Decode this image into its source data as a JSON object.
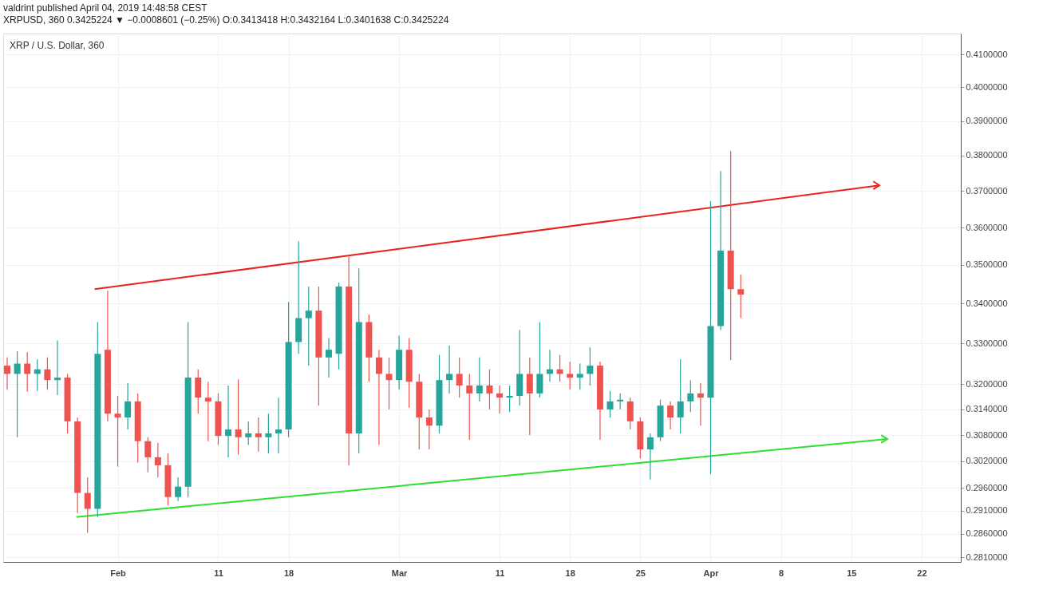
{
  "chart_data": {
    "type": "candlestick",
    "title": "valdrint published April 04, 2019 14:48:58 CEST",
    "subtitle": "XRPUSD, 360 0.3425224 ▼ −0.0008601 (−0.25%) O:0.3413418 H:0.3432164 L:0.3401638 C:0.3425224",
    "annotations": [
      "XRP / U.S. Dollar, 360"
    ],
    "x": [
      "2019-01-21",
      "2019-01-22",
      "2019-01-23",
      "2019-01-24",
      "2019-01-25",
      "2019-01-26",
      "2019-01-27",
      "2019-01-28",
      "2019-01-29",
      "2019-01-30",
      "2019-01-31",
      "2019-02-01",
      "2019-02-02",
      "2019-02-03",
      "2019-02-04",
      "2019-02-05",
      "2019-02-06",
      "2019-02-07",
      "2019-02-08",
      "2019-02-09",
      "2019-02-10",
      "2019-02-11",
      "2019-02-12",
      "2019-02-13",
      "2019-02-14",
      "2019-02-15",
      "2019-02-16",
      "2019-02-17",
      "2019-02-18",
      "2019-02-19",
      "2019-02-20",
      "2019-02-21",
      "2019-02-22",
      "2019-02-23",
      "2019-02-24",
      "2019-02-25",
      "2019-02-26",
      "2019-02-27",
      "2019-02-28",
      "2019-03-01",
      "2019-03-02",
      "2019-03-03",
      "2019-03-04",
      "2019-03-05",
      "2019-03-06",
      "2019-03-07",
      "2019-03-08",
      "2019-03-09",
      "2019-03-10",
      "2019-03-11",
      "2019-03-12",
      "2019-03-13",
      "2019-03-14",
      "2019-03-15",
      "2019-03-16",
      "2019-03-17",
      "2019-03-18",
      "2019-03-19",
      "2019-03-20",
      "2019-03-21",
      "2019-03-22",
      "2019-03-23",
      "2019-03-24",
      "2019-03-25",
      "2019-03-26",
      "2019-03-27",
      "2019-03-28",
      "2019-03-29",
      "2019-03-30",
      "2019-03-31",
      "2019-04-01",
      "2019-04-02",
      "2019-04-03",
      "2019-04-04"
    ],
    "ohlc": [
      [
        0.3245,
        0.3265,
        0.3187,
        0.3225
      ],
      [
        0.3225,
        0.328,
        0.3075,
        0.325
      ],
      [
        0.325,
        0.3278,
        0.3182,
        0.3225
      ],
      [
        0.3225,
        0.3261,
        0.3184,
        0.3236
      ],
      [
        0.3236,
        0.3265,
        0.3187,
        0.321
      ],
      [
        0.321,
        0.3307,
        0.3174,
        0.3216
      ],
      [
        0.3216,
        0.3225,
        0.3084,
        0.3112
      ],
      [
        0.3112,
        0.3121,
        0.2905,
        0.2949
      ],
      [
        0.2949,
        0.2984,
        0.2862,
        0.2914
      ],
      [
        0.2914,
        0.3353,
        0.2896,
        0.3274
      ],
      [
        0.3284,
        0.3433,
        0.3112,
        0.313
      ],
      [
        0.313,
        0.3172,
        0.3008,
        0.3121
      ],
      [
        0.3121,
        0.3203,
        0.3093,
        0.3159
      ],
      [
        0.3159,
        0.3178,
        0.3017,
        0.3066
      ],
      [
        0.3066,
        0.3075,
        0.2995,
        0.3029
      ],
      [
        0.3029,
        0.3062,
        0.2984,
        0.3011
      ],
      [
        0.3011,
        0.3038,
        0.2922,
        0.294
      ],
      [
        0.294,
        0.2984,
        0.2931,
        0.2963
      ],
      [
        0.2963,
        0.3353,
        0.294,
        0.3216
      ],
      [
        0.3216,
        0.3236,
        0.313,
        0.3168
      ],
      [
        0.3168,
        0.3206,
        0.3066,
        0.3159
      ],
      [
        0.3159,
        0.3178,
        0.3057,
        0.3078
      ],
      [
        0.3078,
        0.3197,
        0.3029,
        0.3093
      ],
      [
        0.3093,
        0.3212,
        0.3035,
        0.3075
      ],
      [
        0.3075,
        0.3112,
        0.3057,
        0.3084
      ],
      [
        0.3084,
        0.3121,
        0.3042,
        0.3075
      ],
      [
        0.3075,
        0.313,
        0.3038,
        0.3084
      ],
      [
        0.3084,
        0.3168,
        0.3038,
        0.3093
      ],
      [
        0.3093,
        0.3404,
        0.3075,
        0.3303
      ],
      [
        0.3303,
        0.3563,
        0.3274,
        0.3363
      ],
      [
        0.3363,
        0.3444,
        0.3245,
        0.3382
      ],
      [
        0.3382,
        0.3444,
        0.3149,
        0.3265
      ],
      [
        0.3265,
        0.3313,
        0.3216,
        0.3284
      ],
      [
        0.3274,
        0.3454,
        0.3236,
        0.3444
      ],
      [
        0.3444,
        0.3521,
        0.3011,
        0.3084
      ],
      [
        0.3084,
        0.3491,
        0.3038,
        0.3353
      ],
      [
        0.3353,
        0.3372,
        0.3206,
        0.3265
      ],
      [
        0.3265,
        0.3284,
        0.3057,
        0.3225
      ],
      [
        0.3225,
        0.3265,
        0.314,
        0.321
      ],
      [
        0.321,
        0.3319,
        0.3187,
        0.3284
      ],
      [
        0.3284,
        0.3313,
        0.3144,
        0.3206
      ],
      [
        0.3206,
        0.3225,
        0.3047,
        0.3121
      ],
      [
        0.3121,
        0.314,
        0.3047,
        0.3102
      ],
      [
        0.3102,
        0.3271,
        0.3084,
        0.321
      ],
      [
        0.321,
        0.3294,
        0.3178,
        0.3225
      ],
      [
        0.3225,
        0.3265,
        0.3168,
        0.3197
      ],
      [
        0.3197,
        0.3225,
        0.3069,
        0.3178
      ],
      [
        0.3178,
        0.3265,
        0.3159,
        0.3197
      ],
      [
        0.3197,
        0.3236,
        0.314,
        0.3178
      ],
      [
        0.3178,
        0.3197,
        0.313,
        0.3168
      ],
      [
        0.3168,
        0.3197,
        0.3134,
        0.3172
      ],
      [
        0.3172,
        0.3333,
        0.3149,
        0.3225
      ],
      [
        0.3225,
        0.3265,
        0.308,
        0.3178
      ],
      [
        0.3178,
        0.3353,
        0.3168,
        0.3225
      ],
      [
        0.3225,
        0.3284,
        0.3206,
        0.3236
      ],
      [
        0.3236,
        0.3271,
        0.3206,
        0.3225
      ],
      [
        0.3225,
        0.3255,
        0.3187,
        0.3216
      ],
      [
        0.3216,
        0.325,
        0.3187,
        0.3225
      ],
      [
        0.3225,
        0.329,
        0.3197,
        0.3245
      ],
      [
        0.3245,
        0.3255,
        0.3069,
        0.314
      ],
      [
        0.314,
        0.3184,
        0.3121,
        0.3159
      ],
      [
        0.3159,
        0.3178,
        0.314,
        0.3163
      ],
      [
        0.3159,
        0.3168,
        0.3093,
        0.3112
      ],
      [
        0.3112,
        0.3121,
        0.3026,
        0.3047
      ],
      [
        0.3047,
        0.3084,
        0.2979,
        0.3075
      ],
      [
        0.3075,
        0.3163,
        0.3066,
        0.3149
      ],
      [
        0.3149,
        0.3159,
        0.3093,
        0.3121
      ],
      [
        0.3121,
        0.3261,
        0.3084,
        0.3159
      ],
      [
        0.3159,
        0.321,
        0.3134,
        0.3178
      ],
      [
        0.3178,
        0.3203,
        0.3102,
        0.3168
      ],
      [
        0.3168,
        0.3672,
        0.2991,
        0.3343
      ],
      [
        0.3343,
        0.3756,
        0.3333,
        0.3538
      ],
      [
        0.3538,
        0.3813,
        0.3259,
        0.3437
      ],
      [
        0.3437,
        0.3475,
        0.3363,
        0.3423
      ]
    ],
    "colors": [
      "#ef5350",
      "#26a69a",
      "#ef5350",
      "#26a69a",
      "#ef5350",
      "#26a69a",
      "#ef5350",
      "#ef5350",
      "#ef5350",
      "#26a69a",
      "#ef5350",
      "#ef5350",
      "#26a69a",
      "#ef5350",
      "#ef5350",
      "#ef5350",
      "#ef5350",
      "#26a69a",
      "#26a69a",
      "#ef5350",
      "#ef5350",
      "#ef5350",
      "#26a69a",
      "#ef5350",
      "#26a69a",
      "#ef5350",
      "#26a69a",
      "#26a69a",
      "#26a69a",
      "#26a69a",
      "#26a69a",
      "#ef5350",
      "#26a69a",
      "#26a69a",
      "#ef5350",
      "#26a69a",
      "#ef5350",
      "#ef5350",
      "#ef5350",
      "#26a69a",
      "#ef5350",
      "#ef5350",
      "#ef5350",
      "#26a69a",
      "#26a69a",
      "#ef5350",
      "#ef5350",
      "#26a69a",
      "#ef5350",
      "#ef5350",
      "#26a69a",
      "#26a69a",
      "#ef5350",
      "#26a69a",
      "#26a69a",
      "#ef5350",
      "#ef5350",
      "#26a69a",
      "#26a69a",
      "#ef5350",
      "#26a69a",
      "#26a69a",
      "#ef5350",
      "#ef5350",
      "#26a69a",
      "#26a69a",
      "#ef5350",
      "#26a69a",
      "#26a69a",
      "#ef5350",
      "#26a69a",
      "#26a69a",
      "#ef5350",
      "#ef5350"
    ],
    "series": [
      {
        "type": "line",
        "color": "#e8231f",
        "x": [
          "2019-01-29T17:00",
          "2019-04-17T19:00"
        ],
        "values": [
          0.3437,
          0.3716
        ]
      },
      {
        "type": "line",
        "color": "#2ee02e",
        "x": [
          "2019-01-27T21:00",
          "2019-04-18T14:00"
        ],
        "values": [
          0.2896,
          0.3071
        ]
      }
    ],
    "xlim": [
      "2019-01-21",
      "2019-04-25T12:00"
    ],
    "xticks": [
      {
        "value": "2019-02-01",
        "label": "Feb"
      },
      {
        "value": "2019-02-11",
        "label": "11"
      },
      {
        "value": "2019-02-18",
        "label": "18"
      },
      {
        "value": "2019-03-01",
        "label": "Mar"
      },
      {
        "value": "2019-03-11",
        "label": "11"
      },
      {
        "value": "2019-03-18",
        "label": "18"
      },
      {
        "value": "2019-03-25",
        "label": "25"
      },
      {
        "value": "2019-04-01",
        "label": "Apr"
      },
      {
        "value": "2019-04-08",
        "label": "8"
      },
      {
        "value": "2019-04-15",
        "label": "15"
      },
      {
        "value": "2019-04-22",
        "label": "22"
      }
    ],
    "ylim": [
      0.28,
      0.4165
    ],
    "yticks": [
      {
        "value": 0.281,
        "label": "0.2810000"
      },
      {
        "value": 0.286,
        "label": "0.2860000"
      },
      {
        "value": 0.291,
        "label": "0.2910000"
      },
      {
        "value": 0.296,
        "label": "0.2960000"
      },
      {
        "value": 0.302,
        "label": "0.3020000"
      },
      {
        "value": 0.308,
        "label": "0.3080000"
      },
      {
        "value": 0.314,
        "label": "0.3140000"
      },
      {
        "value": 0.32,
        "label": "0.3200000"
      },
      {
        "value": 0.33,
        "label": "0.3300000"
      },
      {
        "value": 0.34,
        "label": "0.3400000"
      },
      {
        "value": 0.35,
        "label": "0.3500000"
      },
      {
        "value": 0.36,
        "label": "0.3600000"
      },
      {
        "value": 0.37,
        "label": "0.3700000"
      },
      {
        "value": 0.38,
        "label": "0.3800000"
      },
      {
        "value": 0.39,
        "label": "0.3900000"
      },
      {
        "value": 0.4,
        "label": "0.4000000"
      },
      {
        "value": 0.41,
        "label": "0.4100000"
      }
    ],
    "log": "y",
    "grid": true
  }
}
